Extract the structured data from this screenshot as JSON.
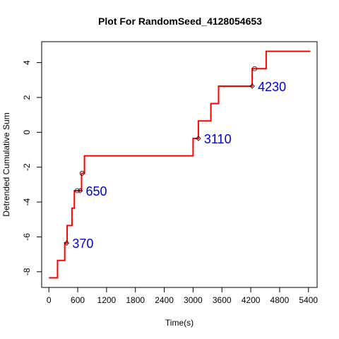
{
  "chart_data": {
    "type": "line",
    "title": "Plot For RandomSeed_4128054653",
    "xlabel": "Time(s)",
    "ylabel": "Detrended Cumulative Sum",
    "xlim": [
      -150,
      5580
    ],
    "ylim": [
      -8.9,
      5.2
    ],
    "xticks": [
      0,
      600,
      1200,
      1800,
      2400,
      3000,
      3600,
      4200,
      4800,
      5400
    ],
    "yticks": [
      -8,
      -6,
      -4,
      -2,
      0,
      2,
      4
    ],
    "colors": {
      "line": "#ff0000",
      "annotation": "#0000cc",
      "marker": "#000000"
    },
    "series": [
      {
        "points": [
          [
            0,
            -8.35
          ],
          [
            180,
            -8.35
          ],
          [
            180,
            -7.35
          ],
          [
            330,
            -7.35
          ],
          [
            330,
            -6.35
          ],
          [
            380,
            -6.35
          ],
          [
            380,
            -5.35
          ],
          [
            480,
            -5.35
          ],
          [
            480,
            -4.35
          ],
          [
            530,
            -4.35
          ],
          [
            530,
            -3.35
          ],
          [
            620,
            -3.35
          ],
          [
            620,
            -3.35
          ],
          [
            680,
            -3.35
          ],
          [
            680,
            -2.35
          ],
          [
            740,
            -2.35
          ],
          [
            740,
            -1.35
          ],
          [
            3000,
            -1.35
          ],
          [
            3000,
            -0.35
          ],
          [
            3110,
            -0.35
          ],
          [
            3110,
            0.65
          ],
          [
            3370,
            0.65
          ],
          [
            3370,
            1.65
          ],
          [
            3530,
            1.65
          ],
          [
            3530,
            2.65
          ],
          [
            4230,
            2.65
          ],
          [
            4230,
            3.65
          ],
          [
            4520,
            3.65
          ],
          [
            4520,
            4.65
          ],
          [
            5440,
            4.65
          ]
        ]
      }
    ],
    "circle_markers": [
      [
        590,
        -3.35
      ],
      [
        690,
        -2.35
      ],
      [
        4280,
        3.65
      ]
    ],
    "diamond_markers": [
      [
        370,
        -6.35
      ],
      [
        650,
        -3.35
      ],
      [
        3110,
        -0.35
      ],
      [
        4230,
        2.65
      ]
    ],
    "annotations": [
      {
        "text": "370",
        "x": 370,
        "y": -6.35
      },
      {
        "text": "650",
        "x": 650,
        "y": -3.35
      },
      {
        "text": "3110",
        "x": 3110,
        "y": -0.35
      },
      {
        "text": "4230",
        "x": 4230,
        "y": 2.65
      }
    ]
  }
}
